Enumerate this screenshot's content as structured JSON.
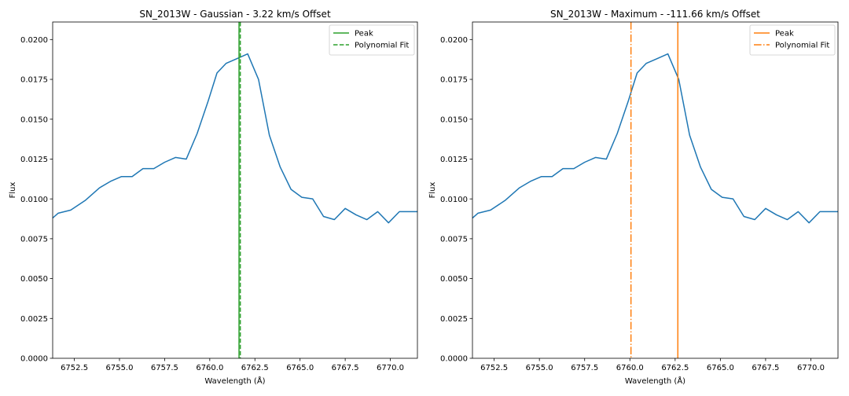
{
  "chart_data": [
    {
      "type": "line",
      "title": "SN_2013W - Gaussian - 3.22 km/s Offset",
      "xlabel": "Wavelength ($\\AA$)",
      "ylabel": "Flux",
      "xlim": [
        6751.3,
        6771.5
      ],
      "ylim": [
        0.0,
        0.0211
      ],
      "xticks": [
        6752.5,
        6755.0,
        6757.5,
        6760.0,
        6762.5,
        6765.0,
        6767.5,
        6770.0
      ],
      "xtick_labels": [
        "6752.5",
        "6755.0",
        "6757.5",
        "6760.0",
        "6762.5",
        "6765.0",
        "6767.5",
        "6770.0"
      ],
      "yticks": [
        0.0,
        0.0025,
        0.005,
        0.0075,
        0.01,
        0.0125,
        0.015,
        0.0175,
        0.02
      ],
      "ytick_labels": [
        "0.0000",
        "0.0025",
        "0.0050",
        "0.0075",
        "0.0100",
        "0.0125",
        "0.0150",
        "0.0175",
        "0.0200"
      ],
      "grid": false,
      "legend_position": "top-right",
      "series": [
        {
          "color": "#1f77b4",
          "x": [
            6751.3,
            6751.6,
            6752.3,
            6753.1,
            6753.9,
            6754.5,
            6755.1,
            6755.7,
            6756.3,
            6756.9,
            6757.5,
            6758.1,
            6758.7,
            6759.3,
            6759.9,
            6760.4,
            6760.9,
            6761.5,
            6762.1,
            6762.7,
            6763.3,
            6763.9,
            6764.5,
            6765.1,
            6765.7,
            6766.3,
            6766.9,
            6767.5,
            6768.1,
            6768.7,
            6769.3,
            6769.9,
            6770.5,
            6771.0,
            6771.5
          ],
          "y": [
            0.0088,
            0.0091,
            0.0093,
            0.0099,
            0.0107,
            0.0111,
            0.0114,
            0.0114,
            0.0119,
            0.0119,
            0.0123,
            0.0126,
            0.0125,
            0.0141,
            0.0161,
            0.0179,
            0.0185,
            0.0188,
            0.0191,
            0.0175,
            0.014,
            0.012,
            0.0106,
            0.0101,
            0.01,
            0.0089,
            0.0087,
            0.0094,
            0.009,
            0.0087,
            0.0092,
            0.0085,
            0.0092,
            0.0092,
            0.0092
          ]
        },
        {
          "name": "Peak",
          "color": "#2ca02c",
          "vline": 6761.62,
          "linestyle": "solid"
        },
        {
          "name": "Polynomial Fit",
          "color": "#2ca02c",
          "vline": 6761.69,
          "linestyle": "dashed"
        }
      ]
    },
    {
      "type": "line",
      "title": "SN_2013W - Maximum - -111.66 km/s Offset",
      "xlabel": "Wavelength ($\\AA$)",
      "ylabel": "Flux",
      "xlim": [
        6751.3,
        6771.5
      ],
      "ylim": [
        0.0,
        0.0211
      ],
      "xticks": [
        6752.5,
        6755.0,
        6757.5,
        6760.0,
        6762.5,
        6765.0,
        6767.5,
        6770.0
      ],
      "xtick_labels": [
        "6752.5",
        "6755.0",
        "6757.5",
        "6760.0",
        "6762.5",
        "6765.0",
        "6767.5",
        "6770.0"
      ],
      "yticks": [
        0.0,
        0.0025,
        0.005,
        0.0075,
        0.01,
        0.0125,
        0.015,
        0.0175,
        0.02
      ],
      "ytick_labels": [
        "0.0000",
        "0.0025",
        "0.0050",
        "0.0075",
        "0.0100",
        "0.0125",
        "0.0150",
        "0.0175",
        "0.0200"
      ],
      "grid": false,
      "legend_position": "top-right",
      "series": [
        {
          "color": "#1f77b4",
          "x": [
            6751.3,
            6751.6,
            6752.3,
            6753.1,
            6753.9,
            6754.5,
            6755.1,
            6755.7,
            6756.3,
            6756.9,
            6757.5,
            6758.1,
            6758.7,
            6759.3,
            6759.9,
            6760.4,
            6760.9,
            6761.5,
            6762.1,
            6762.7,
            6763.3,
            6763.9,
            6764.5,
            6765.1,
            6765.7,
            6766.3,
            6766.9,
            6767.5,
            6768.1,
            6768.7,
            6769.3,
            6769.9,
            6770.5,
            6771.0,
            6771.5
          ],
          "y": [
            0.0088,
            0.0091,
            0.0093,
            0.0099,
            0.0107,
            0.0111,
            0.0114,
            0.0114,
            0.0119,
            0.0119,
            0.0123,
            0.0126,
            0.0125,
            0.0141,
            0.0161,
            0.0179,
            0.0185,
            0.0188,
            0.0191,
            0.0175,
            0.014,
            0.012,
            0.0106,
            0.0101,
            0.01,
            0.0089,
            0.0087,
            0.0094,
            0.009,
            0.0087,
            0.0092,
            0.0085,
            0.0092,
            0.0092,
            0.0092
          ]
        },
        {
          "name": "Peak",
          "color": "#ff7f0e",
          "vline": 6762.65,
          "linestyle": "solid"
        },
        {
          "name": "Polynomial Fit",
          "color": "#ff7f0e",
          "vline": 6760.06,
          "linestyle": "dashdot"
        }
      ]
    }
  ]
}
